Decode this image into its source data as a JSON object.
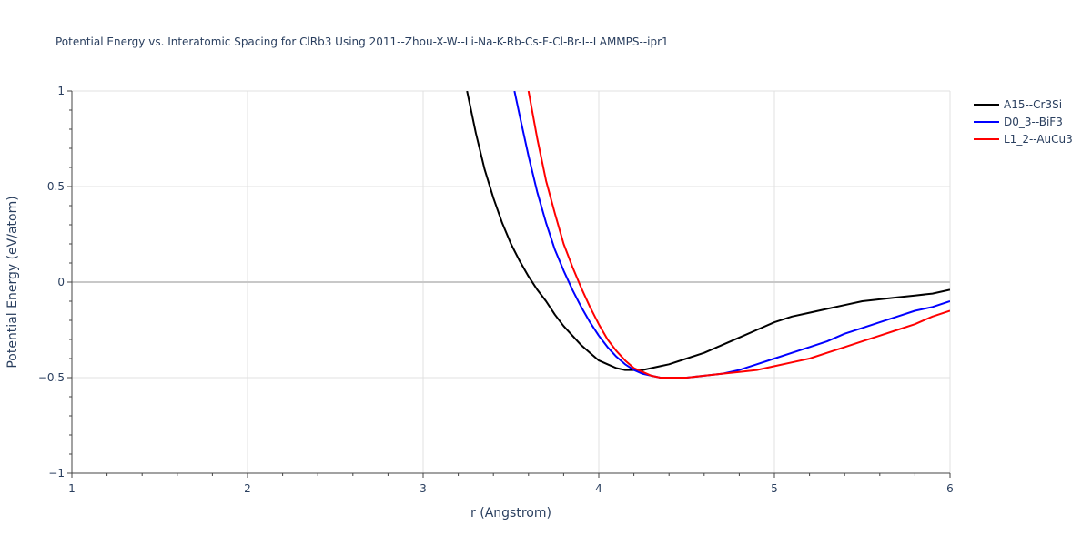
{
  "chart_data": {
    "type": "line",
    "title": "Potential Energy vs. Interatomic Spacing for ClRb3 Using 2011--Zhou-X-W--Li-Na-K-Rb-Cs-F-Cl-Br-I--LAMMPS--ipr1",
    "xlabel": "r (Angstrom)",
    "ylabel": "Potential Energy (eV/atom)",
    "xlim": [
      1,
      6
    ],
    "ylim": [
      -1,
      1
    ],
    "xticks": [
      "1",
      "2",
      "3",
      "4",
      "5",
      "6"
    ],
    "yticks": [
      "1",
      "0.5",
      "0",
      "−0.5",
      "−1"
    ],
    "ytick_values": [
      1,
      0.5,
      0,
      -0.5,
      -1
    ],
    "xtick_values": [
      1,
      2,
      3,
      4,
      5,
      6
    ],
    "grid": true,
    "legend_position": "top-right",
    "series": [
      {
        "name": "A15--Cr3Si",
        "color": "#000000",
        "x": [
          3.25,
          3.3,
          3.35,
          3.4,
          3.45,
          3.5,
          3.55,
          3.6,
          3.65,
          3.7,
          3.75,
          3.8,
          3.85,
          3.9,
          3.95,
          4.0,
          4.05,
          4.1,
          4.15,
          4.2,
          4.25,
          4.3,
          4.35,
          4.4,
          4.5,
          4.6,
          4.7,
          4.8,
          4.9,
          5.0,
          5.1,
          5.2,
          5.3,
          5.4,
          5.5,
          5.6,
          5.7,
          5.8,
          5.9,
          6.0
        ],
        "y": [
          1.0,
          0.78,
          0.59,
          0.44,
          0.31,
          0.2,
          0.11,
          0.03,
          -0.04,
          -0.1,
          -0.17,
          -0.23,
          -0.28,
          -0.33,
          -0.37,
          -0.41,
          -0.43,
          -0.45,
          -0.46,
          -0.46,
          -0.46,
          -0.45,
          -0.44,
          -0.43,
          -0.4,
          -0.37,
          -0.33,
          -0.29,
          -0.25,
          -0.21,
          -0.18,
          -0.16,
          -0.14,
          -0.12,
          -0.1,
          -0.09,
          -0.08,
          -0.07,
          -0.06,
          -0.04
        ]
      },
      {
        "name": "D0_3--BiF3",
        "color": "#0000ff",
        "x": [
          3.52,
          3.55,
          3.6,
          3.65,
          3.7,
          3.75,
          3.8,
          3.85,
          3.9,
          3.95,
          4.0,
          4.05,
          4.1,
          4.15,
          4.2,
          4.25,
          4.3,
          4.35,
          4.4,
          4.45,
          4.5,
          4.6,
          4.7,
          4.8,
          4.9,
          5.0,
          5.1,
          5.2,
          5.3,
          5.4,
          5.5,
          5.6,
          5.7,
          5.8,
          5.9,
          6.0
        ],
        "y": [
          1.0,
          0.87,
          0.66,
          0.47,
          0.31,
          0.17,
          0.06,
          -0.04,
          -0.13,
          -0.21,
          -0.28,
          -0.34,
          -0.39,
          -0.43,
          -0.46,
          -0.48,
          -0.49,
          -0.5,
          -0.5,
          -0.5,
          -0.5,
          -0.49,
          -0.48,
          -0.46,
          -0.43,
          -0.4,
          -0.37,
          -0.34,
          -0.31,
          -0.27,
          -0.24,
          -0.21,
          -0.18,
          -0.15,
          -0.13,
          -0.1
        ]
      },
      {
        "name": "L1_2--AuCu3",
        "color": "#ff0000",
        "x": [
          3.6,
          3.65,
          3.7,
          3.75,
          3.8,
          3.85,
          3.9,
          3.95,
          4.0,
          4.05,
          4.1,
          4.15,
          4.2,
          4.25,
          4.3,
          4.35,
          4.4,
          4.45,
          4.5,
          4.6,
          4.7,
          4.8,
          4.9,
          5.0,
          5.1,
          5.2,
          5.3,
          5.4,
          5.5,
          5.6,
          5.7,
          5.8,
          5.9,
          6.0
        ],
        "y": [
          1.0,
          0.75,
          0.53,
          0.36,
          0.2,
          0.08,
          -0.03,
          -0.13,
          -0.22,
          -0.3,
          -0.36,
          -0.41,
          -0.45,
          -0.47,
          -0.49,
          -0.5,
          -0.5,
          -0.5,
          -0.5,
          -0.49,
          -0.48,
          -0.47,
          -0.46,
          -0.44,
          -0.42,
          -0.4,
          -0.37,
          -0.34,
          -0.31,
          -0.28,
          -0.25,
          -0.22,
          -0.18,
          -0.15
        ]
      }
    ]
  }
}
